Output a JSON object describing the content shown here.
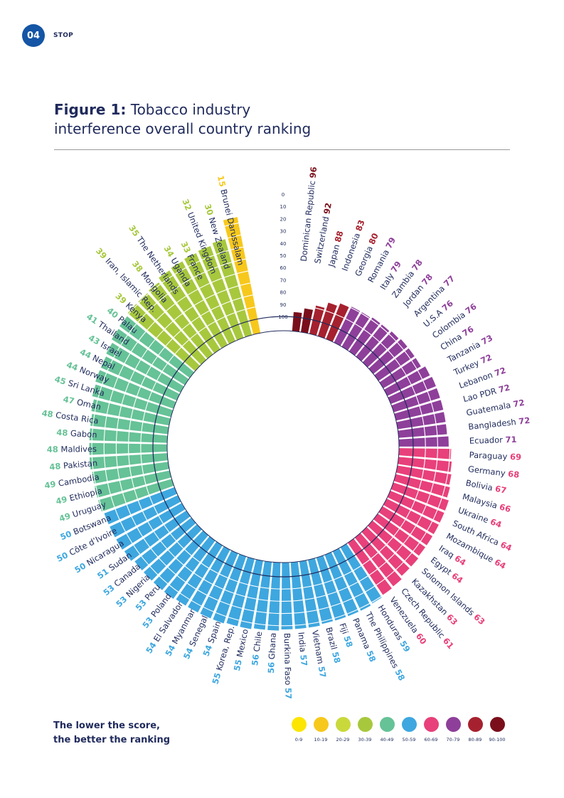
{
  "header": {
    "page_number": "04",
    "section": "STOP"
  },
  "title": {
    "prefix": "Figure 1:",
    "line1": "Tobacco industry",
    "line2": "interference overall country ranking"
  },
  "note": {
    "line1": "The lower the score,",
    "line2": "the better the ranking"
  },
  "legend": [
    {
      "label": "0-9",
      "color": "#fce500"
    },
    {
      "label": "10-19",
      "color": "#f7c81c"
    },
    {
      "label": "20-29",
      "color": "#c9d93c"
    },
    {
      "label": "30-39",
      "color": "#a7c83d"
    },
    {
      "label": "40-49",
      "color": "#66c297"
    },
    {
      "label": "50-59",
      "color": "#3ea7df"
    },
    {
      "label": "60-69",
      "color": "#e8407a"
    },
    {
      "label": "70-79",
      "color": "#8e3f9a"
    },
    {
      "label": "80-89",
      "color": "#a6212f"
    },
    {
      "label": "90-100",
      "color": "#7a0f1b"
    }
  ],
  "chart_data": {
    "type": "bar",
    "layout": "radial",
    "scale_ticks": [
      "0",
      "10",
      "20",
      "30",
      "40",
      "50",
      "60",
      "70",
      "80",
      "90",
      "100"
    ],
    "ylim": [
      0,
      100
    ],
    "countries": [
      {
        "name": "Dominican Republic",
        "value": 96
      },
      {
        "name": "Switzerland",
        "value": 92
      },
      {
        "name": "Japan",
        "value": 88
      },
      {
        "name": "Indonesia",
        "value": 83
      },
      {
        "name": "Georgia",
        "value": 80
      },
      {
        "name": "Romania",
        "value": 79
      },
      {
        "name": "Italy",
        "value": 79
      },
      {
        "name": "Zambia",
        "value": 78
      },
      {
        "name": "Jordan",
        "value": 78
      },
      {
        "name": "Argentina",
        "value": 77
      },
      {
        "name": "U.S.A",
        "value": 76
      },
      {
        "name": "Colombia",
        "value": 76
      },
      {
        "name": "China",
        "value": 76
      },
      {
        "name": "Tanzania",
        "value": 73
      },
      {
        "name": "Turkey",
        "value": 72
      },
      {
        "name": "Lebanon",
        "value": 72
      },
      {
        "name": "Lao PDR",
        "value": 72
      },
      {
        "name": "Guatemala",
        "value": 72
      },
      {
        "name": "Bangladesh",
        "value": 72
      },
      {
        "name": "Ecuador",
        "value": 71
      },
      {
        "name": "Paraguay",
        "value": 69
      },
      {
        "name": "Germany",
        "value": 68
      },
      {
        "name": "Bolivia",
        "value": 67
      },
      {
        "name": "Malaysia",
        "value": 66
      },
      {
        "name": "Ukraine",
        "value": 64
      },
      {
        "name": "South Africa",
        "value": 64
      },
      {
        "name": "Mozambique",
        "value": 64
      },
      {
        "name": "Iraq",
        "value": 64
      },
      {
        "name": "Egypt",
        "value": 64
      },
      {
        "name": "Solomon Islands",
        "value": 63
      },
      {
        "name": "Kazakhstan",
        "value": 63
      },
      {
        "name": "Czech Republic",
        "value": 61
      },
      {
        "name": "Venezuela",
        "value": 60
      },
      {
        "name": "Honduras",
        "value": 59
      },
      {
        "name": "The Philippines",
        "value": 58
      },
      {
        "name": "Panama",
        "value": 58
      },
      {
        "name": "Fiji",
        "value": 58
      },
      {
        "name": "Brazil",
        "value": 58
      },
      {
        "name": "Vietnam",
        "value": 57
      },
      {
        "name": "India",
        "value": 57
      },
      {
        "name": "Burkina Faso",
        "value": 57
      },
      {
        "name": "Ghana",
        "value": 56
      },
      {
        "name": "Chile",
        "value": 56
      },
      {
        "name": "Mexico",
        "value": 55
      },
      {
        "name": "Korea, Rep.",
        "value": 55
      },
      {
        "name": "Spain",
        "value": 54
      },
      {
        "name": "Senegal",
        "value": 54
      },
      {
        "name": "Myanmar",
        "value": 54
      },
      {
        "name": "El Salvador",
        "value": 54
      },
      {
        "name": "Poland",
        "value": 53
      },
      {
        "name": "Peru",
        "value": 53
      },
      {
        "name": "Nigeria",
        "value": 53
      },
      {
        "name": "Canada",
        "value": 53
      },
      {
        "name": "Sudan",
        "value": 51
      },
      {
        "name": "Nicaragua",
        "value": 50
      },
      {
        "name": "Côte d’Ivoire",
        "value": 50
      },
      {
        "name": "Botswana",
        "value": 50
      },
      {
        "name": "Uruguay",
        "value": 49
      },
      {
        "name": "Ethiopia",
        "value": 49
      },
      {
        "name": "Cambodia",
        "value": 49
      },
      {
        "name": "Pakistan",
        "value": 48
      },
      {
        "name": "Maldives",
        "value": 48
      },
      {
        "name": "Gabon",
        "value": 48
      },
      {
        "name": "Costa Rica",
        "value": 48
      },
      {
        "name": "Oman",
        "value": 47
      },
      {
        "name": "Sri Lanka",
        "value": 45
      },
      {
        "name": "Norway",
        "value": 44
      },
      {
        "name": "Nepal",
        "value": 44
      },
      {
        "name": "Israel",
        "value": 43
      },
      {
        "name": "Thailand",
        "value": 41
      },
      {
        "name": "Palau",
        "value": 40
      },
      {
        "name": "Kenya",
        "value": 39
      },
      {
        "name": "Iran, Islamic Rep.",
        "value": 39
      },
      {
        "name": "Mongolia",
        "value": 38
      },
      {
        "name": "The Netherlands",
        "value": 35
      },
      {
        "name": "Uganda",
        "value": 34
      },
      {
        "name": "France",
        "value": 33
      },
      {
        "name": "United Kingdom",
        "value": 32
      },
      {
        "name": "New Zealand",
        "value": 30
      },
      {
        "name": "Brunei Darussalam",
        "value": 15
      }
    ]
  }
}
